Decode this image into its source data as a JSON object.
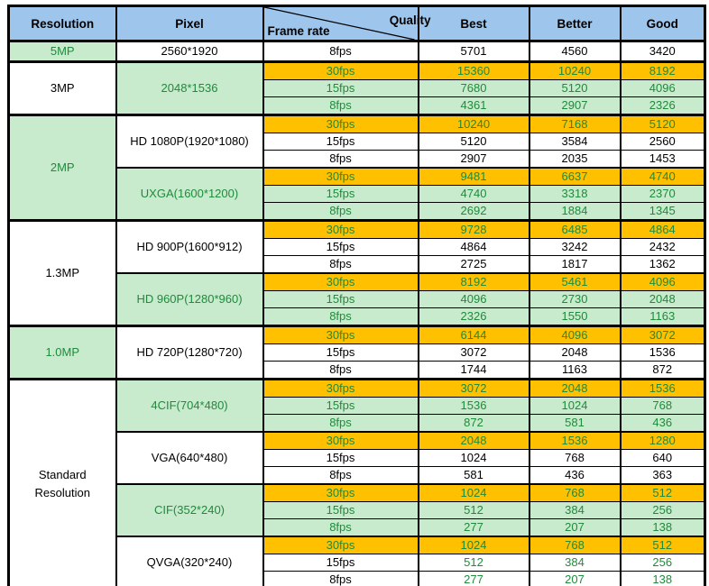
{
  "header": {
    "resolution": "Resolution",
    "pixel": "Pixel",
    "quality": "Quality",
    "frame_rate": "Frame rate",
    "best": "Best",
    "better": "Better",
    "good": "Good"
  },
  "colors": {
    "header_bg": "#9EC5EC",
    "green_bg": "#C8EACD",
    "orange_bg": "#FFC000",
    "green_text": "#1F8B3B",
    "black_text": "#000000",
    "white_bg": "#FFFFFF",
    "border": "#000000"
  },
  "groups": [
    {
      "resolution": {
        "text": "5MP",
        "cell": "green"
      },
      "subgroups": [
        {
          "pixel": {
            "text": "2560*1920",
            "cell": "white"
          },
          "rows": [
            {
              "fps": "8fps",
              "bg": "white",
              "fps_color": "black",
              "value_color": "black",
              "values": [
                "5701",
                "4560",
                "3420"
              ]
            }
          ]
        }
      ]
    },
    {
      "resolution": {
        "text": "3MP",
        "cell": "white"
      },
      "subgroups": [
        {
          "pixel": {
            "text": "2048*1536",
            "cell": "green"
          },
          "rows": [
            {
              "fps": "30fps",
              "bg": "orange",
              "fps_color": "green",
              "value_color": "green",
              "values": [
                "15360",
                "10240",
                "8192"
              ]
            },
            {
              "fps": "15fps",
              "bg": "green",
              "fps_color": "green",
              "value_color": "green",
              "values": [
                "7680",
                "5120",
                "4096"
              ]
            },
            {
              "fps": "8fps",
              "bg": "green",
              "fps_color": "green",
              "value_color": "green",
              "values": [
                "4361",
                "2907",
                "2326"
              ]
            }
          ]
        }
      ]
    },
    {
      "resolution": {
        "text": "2MP",
        "cell": "green"
      },
      "subgroups": [
        {
          "pixel": {
            "text": "HD 1080P(1920*1080)",
            "cell": "white"
          },
          "rows": [
            {
              "fps": "30fps",
              "bg": "orange",
              "fps_color": "green",
              "value_color": "green",
              "values": [
                "10240",
                "7168",
                "5120"
              ]
            },
            {
              "fps": "15fps",
              "bg": "white",
              "fps_color": "black",
              "value_color": "black",
              "values": [
                "5120",
                "3584",
                "2560"
              ]
            },
            {
              "fps": "8fps",
              "bg": "white",
              "fps_color": "black",
              "value_color": "black",
              "values": [
                "2907",
                "2035",
                "1453"
              ]
            }
          ]
        },
        {
          "pixel": {
            "text": "UXGA(1600*1200)",
            "cell": "green"
          },
          "rows": [
            {
              "fps": "30fps",
              "bg": "orange",
              "fps_color": "green",
              "value_color": "green",
              "values": [
                "9481",
                "6637",
                "4740"
              ]
            },
            {
              "fps": "15fps",
              "bg": "green",
              "fps_color": "green",
              "value_color": "green",
              "values": [
                "4740",
                "3318",
                "2370"
              ]
            },
            {
              "fps": "8fps",
              "bg": "green",
              "fps_color": "green",
              "value_color": "green",
              "values": [
                "2692",
                "1884",
                "1345"
              ]
            }
          ]
        }
      ]
    },
    {
      "resolution": {
        "text": "1.3MP",
        "cell": "white"
      },
      "subgroups": [
        {
          "pixel": {
            "text": "HD 900P(1600*912)",
            "cell": "white"
          },
          "rows": [
            {
              "fps": "30fps",
              "bg": "orange",
              "fps_color": "green",
              "value_color": "green",
              "values": [
                "9728",
                "6485",
                "4864"
              ]
            },
            {
              "fps": "15fps",
              "bg": "white",
              "fps_color": "black",
              "value_color": "black",
              "values": [
                "4864",
                "3242",
                "2432"
              ]
            },
            {
              "fps": "8fps",
              "bg": "white",
              "fps_color": "black",
              "value_color": "black",
              "values": [
                "2725",
                "1817",
                "1362"
              ]
            }
          ]
        },
        {
          "pixel": {
            "text": "HD 960P(1280*960)",
            "cell": "green"
          },
          "rows": [
            {
              "fps": "30fps",
              "bg": "orange",
              "fps_color": "green",
              "value_color": "green",
              "values": [
                "8192",
                "5461",
                "4096"
              ]
            },
            {
              "fps": "15fps",
              "bg": "green",
              "fps_color": "green",
              "value_color": "green",
              "values": [
                "4096",
                "2730",
                "2048"
              ]
            },
            {
              "fps": "8fps",
              "bg": "green",
              "fps_color": "green",
              "value_color": "green",
              "values": [
                "2326",
                "1550",
                "1163"
              ]
            }
          ]
        }
      ]
    },
    {
      "resolution": {
        "text": "1.0MP",
        "cell": "green"
      },
      "subgroups": [
        {
          "pixel": {
            "text": "HD 720P(1280*720)",
            "cell": "white"
          },
          "rows": [
            {
              "fps": "30fps",
              "bg": "orange",
              "fps_color": "green",
              "value_color": "green",
              "values": [
                "6144",
                "4096",
                "3072"
              ]
            },
            {
              "fps": "15fps",
              "bg": "white",
              "fps_color": "black",
              "value_color": "black",
              "values": [
                "3072",
                "2048",
                "1536"
              ]
            },
            {
              "fps": "8fps",
              "bg": "white",
              "fps_color": "black",
              "value_color": "black",
              "values": [
                "1744",
                "1163",
                "872"
              ]
            }
          ]
        }
      ]
    },
    {
      "resolution": {
        "text": "Standard Resolution",
        "cell": "white"
      },
      "subgroups": [
        {
          "pixel": {
            "text": "4CIF(704*480)",
            "cell": "green"
          },
          "rows": [
            {
              "fps": "30fps",
              "bg": "orange",
              "fps_color": "green",
              "value_color": "green",
              "values": [
                "3072",
                "2048",
                "1536"
              ]
            },
            {
              "fps": "15fps",
              "bg": "green",
              "fps_color": "green",
              "value_color": "green",
              "values": [
                "1536",
                "1024",
                "768"
              ]
            },
            {
              "fps": "8fps",
              "bg": "green",
              "fps_color": "green",
              "value_color": "green",
              "values": [
                "872",
                "581",
                "436"
              ]
            }
          ]
        },
        {
          "pixel": {
            "text": "VGA(640*480)",
            "cell": "white"
          },
          "rows": [
            {
              "fps": "30fps",
              "bg": "orange",
              "fps_color": "green",
              "value_color": "green",
              "values": [
                "2048",
                "1536",
                "1280"
              ]
            },
            {
              "fps": "15fps",
              "bg": "white",
              "fps_color": "black",
              "value_color": "black",
              "values": [
                "1024",
                "768",
                "640"
              ]
            },
            {
              "fps": "8fps",
              "bg": "white",
              "fps_color": "black",
              "value_color": "black",
              "values": [
                "581",
                "436",
                "363"
              ]
            }
          ]
        },
        {
          "pixel": {
            "text": "CIF(352*240)",
            "cell": "green"
          },
          "rows": [
            {
              "fps": "30fps",
              "bg": "orange",
              "fps_color": "green",
              "value_color": "green",
              "values": [
                "1024",
                "768",
                "512"
              ]
            },
            {
              "fps": "15fps",
              "bg": "green",
              "fps_color": "green",
              "value_color": "green",
              "values": [
                "512",
                "384",
                "256"
              ]
            },
            {
              "fps": "8fps",
              "bg": "green",
              "fps_color": "green",
              "value_color": "green",
              "values": [
                "277",
                "207",
                "138"
              ]
            }
          ]
        },
        {
          "pixel": {
            "text": "QVGA(320*240)",
            "cell": "white"
          },
          "rows": [
            {
              "fps": "30fps",
              "bg": "orange",
              "fps_color": "green",
              "value_color": "green",
              "values": [
                "1024",
                "768",
                "512"
              ]
            },
            {
              "fps": "15fps",
              "bg": "white",
              "fps_color": "black",
              "value_color": "green",
              "values": [
                "512",
                "384",
                "256"
              ]
            },
            {
              "fps": "8fps",
              "bg": "white",
              "fps_color": "black",
              "value_color": "green",
              "values": [
                "277",
                "207",
                "138"
              ]
            }
          ]
        }
      ]
    }
  ]
}
